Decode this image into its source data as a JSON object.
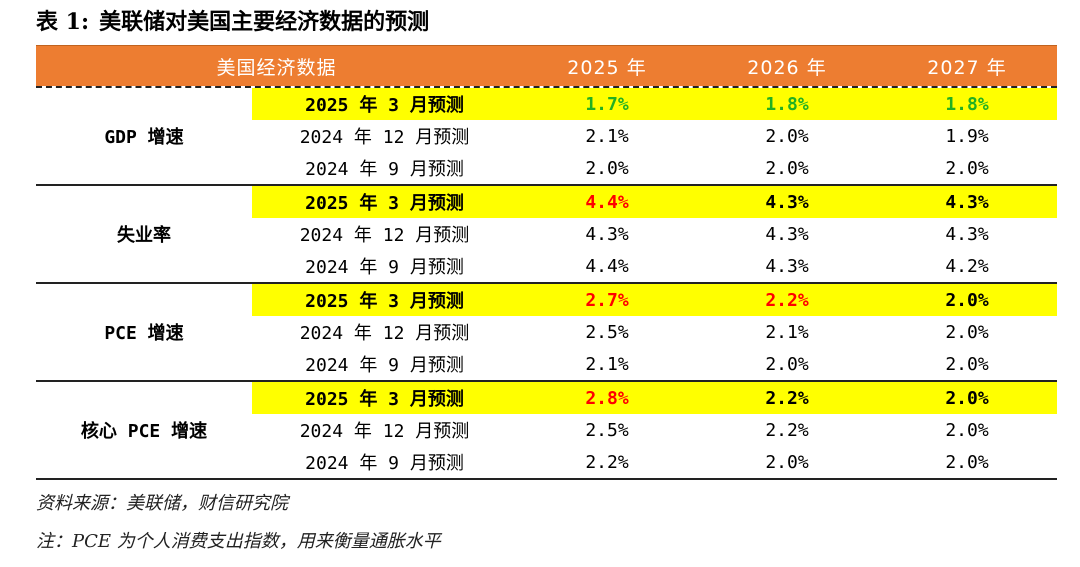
{
  "title": {
    "label": "表 1:",
    "text": "美联储对美国主要经济数据的预测"
  },
  "header": {
    "indicator": "美国经济数据",
    "years": [
      "2025 年",
      "2026 年",
      "2027 年"
    ]
  },
  "colors": {
    "header_bg": "#ED7D31",
    "highlight": "#FFFF00",
    "green": "#22B022",
    "red": "#FF0000",
    "text": "#000000"
  },
  "groups": [
    {
      "name": "GDP 增速",
      "rows": [
        {
          "forecast": "2025 年 3 月预测",
          "values": [
            "1.7%",
            "1.8%",
            "1.8%"
          ],
          "colors": [
            "#22B022",
            "#22B022",
            "#22B022"
          ]
        },
        {
          "forecast": "2024 年 12 月预测",
          "values": [
            "2.1%",
            "2.0%",
            "1.9%"
          ],
          "colors": [
            "#000000",
            "#000000",
            "#000000"
          ]
        },
        {
          "forecast": "2024 年 9 月预测",
          "values": [
            "2.0%",
            "2.0%",
            "2.0%"
          ],
          "colors": [
            "#000000",
            "#000000",
            "#000000"
          ]
        }
      ]
    },
    {
      "name": "失业率",
      "rows": [
        {
          "forecast": "2025 年 3 月预测",
          "values": [
            "4.4%",
            "4.3%",
            "4.3%"
          ],
          "colors": [
            "#FF0000",
            "#000000",
            "#000000"
          ]
        },
        {
          "forecast": "2024 年 12 月预测",
          "values": [
            "4.3%",
            "4.3%",
            "4.3%"
          ],
          "colors": [
            "#000000",
            "#000000",
            "#000000"
          ]
        },
        {
          "forecast": "2024 年 9 月预测",
          "values": [
            "4.4%",
            "4.3%",
            "4.2%"
          ],
          "colors": [
            "#000000",
            "#000000",
            "#000000"
          ]
        }
      ]
    },
    {
      "name": "PCE 增速",
      "rows": [
        {
          "forecast": "2025 年 3 月预测",
          "values": [
            "2.7%",
            "2.2%",
            "2.0%"
          ],
          "colors": [
            "#FF0000",
            "#FF0000",
            "#000000"
          ]
        },
        {
          "forecast": "2024 年 12 月预测",
          "values": [
            "2.5%",
            "2.1%",
            "2.0%"
          ],
          "colors": [
            "#000000",
            "#000000",
            "#000000"
          ]
        },
        {
          "forecast": "2024 年 9 月预测",
          "values": [
            "2.1%",
            "2.0%",
            "2.0%"
          ],
          "colors": [
            "#000000",
            "#000000",
            "#000000"
          ]
        }
      ]
    },
    {
      "name": "核心 PCE 增速",
      "rows": [
        {
          "forecast": "2025 年 3 月预测",
          "values": [
            "2.8%",
            "2.2%",
            "2.0%"
          ],
          "colors": [
            "#FF0000",
            "#000000",
            "#000000"
          ]
        },
        {
          "forecast": "2024 年 12 月预测",
          "values": [
            "2.5%",
            "2.2%",
            "2.0%"
          ],
          "colors": [
            "#000000",
            "#000000",
            "#000000"
          ]
        },
        {
          "forecast": "2024 年 9 月预测",
          "values": [
            "2.2%",
            "2.0%",
            "2.0%"
          ],
          "colors": [
            "#000000",
            "#000000",
            "#000000"
          ]
        }
      ]
    }
  ],
  "footnotes": {
    "source": "资料来源：美联储，财信研究院",
    "note": "注：PCE 为个人消费支出指数，用来衡量通胀水平"
  }
}
